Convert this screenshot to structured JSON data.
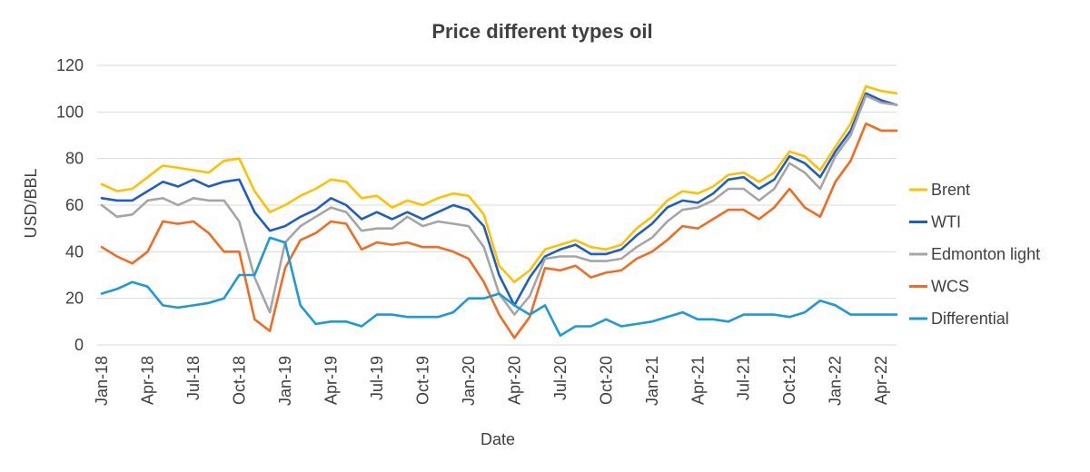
{
  "chart_data": {
    "type": "line",
    "title": "Price different types oil",
    "xlabel": "Date",
    "ylabel": "USD/BBL",
    "ylim": [
      0,
      120
    ],
    "yticks": [
      0,
      20,
      40,
      60,
      80,
      100,
      120
    ],
    "grid": true,
    "legend_position": "right",
    "x": [
      "Jan-18",
      "Feb-18",
      "Mar-18",
      "Apr-18",
      "May-18",
      "Jun-18",
      "Jul-18",
      "Aug-18",
      "Sep-18",
      "Oct-18",
      "Nov-18",
      "Dec-18",
      "Jan-19",
      "Feb-19",
      "Mar-19",
      "Apr-19",
      "May-19",
      "Jun-19",
      "Jul-19",
      "Aug-19",
      "Sep-19",
      "Oct-19",
      "Nov-19",
      "Dec-19",
      "Jan-20",
      "Feb-20",
      "Mar-20",
      "Apr-20",
      "May-20",
      "Jun-20",
      "Jul-20",
      "Aug-20",
      "Sep-20",
      "Oct-20",
      "Nov-20",
      "Dec-20",
      "Jan-21",
      "Feb-21",
      "Mar-21",
      "Apr-21",
      "May-21",
      "Jun-21",
      "Jul-21",
      "Aug-21",
      "Sep-21",
      "Oct-21",
      "Nov-21",
      "Dec-21",
      "Jan-22",
      "Feb-22",
      "Mar-22",
      "Apr-22",
      "May-22"
    ],
    "x_tick_labels": [
      "Jan-18",
      "Apr-18",
      "Jul-18",
      "Oct-18",
      "Jan-19",
      "Apr-19",
      "Jul-19",
      "Oct-19",
      "Jan-20",
      "Apr-20",
      "Jul-20",
      "Oct-20",
      "Jan-21",
      "Apr-21",
      "Jul-21",
      "Oct-21",
      "Jan-22",
      "Apr-22"
    ],
    "series": [
      {
        "name": "Brent",
        "color": "#ffc000",
        "values": [
          69,
          66,
          67,
          72,
          77,
          76,
          75,
          74,
          79,
          80,
          66,
          57,
          60,
          64,
          67,
          71,
          70,
          63,
          64,
          59,
          62,
          60,
          63,
          65,
          64,
          56,
          34,
          27,
          32,
          41,
          43,
          45,
          42,
          41,
          43,
          50,
          55,
          62,
          66,
          65,
          68,
          73,
          74,
          70,
          74,
          83,
          81,
          75,
          85,
          95,
          111,
          109,
          108
        ]
      },
      {
        "name": "WTI",
        "color": "#1f5ebf",
        "values": [
          63,
          62,
          62,
          66,
          70,
          68,
          71,
          68,
          70,
          71,
          57,
          49,
          51,
          55,
          58,
          63,
          60,
          54,
          57,
          54,
          57,
          54,
          57,
          60,
          58,
          51,
          30,
          17,
          29,
          38,
          41,
          43,
          39,
          39,
          41,
          47,
          52,
          59,
          62,
          61,
          65,
          71,
          72,
          67,
          71,
          81,
          78,
          72,
          83,
          92,
          108,
          105,
          103
        ]
      },
      {
        "name": "Edmonton light",
        "color": "#a5a5a5",
        "values": [
          60,
          55,
          56,
          62,
          63,
          60,
          63,
          62,
          62,
          53,
          29,
          14,
          44,
          51,
          55,
          59,
          57,
          49,
          50,
          50,
          55,
          51,
          53,
          52,
          51,
          42,
          22,
          13,
          21,
          37,
          38,
          38,
          36,
          36,
          37,
          42,
          46,
          53,
          58,
          59,
          62,
          67,
          67,
          62,
          67,
          78,
          74,
          67,
          81,
          90,
          107,
          104,
          103
        ]
      },
      {
        "name": "WCS",
        "color": "#f26b21",
        "values": [
          42,
          38,
          35,
          40,
          53,
          52,
          53,
          48,
          40,
          40,
          11,
          6,
          33,
          45,
          48,
          53,
          52,
          41,
          44,
          43,
          44,
          42,
          42,
          40,
          37,
          27,
          13,
          3,
          12,
          33,
          32,
          34,
          29,
          31,
          32,
          37,
          40,
          45,
          51,
          50,
          54,
          58,
          58,
          54,
          59,
          67,
          59,
          55,
          70,
          79,
          95,
          92,
          92
        ]
      },
      {
        "name": "Differential",
        "color": "#1b9ad6",
        "values": [
          22,
          24,
          27,
          25,
          17,
          16,
          17,
          18,
          20,
          30,
          30,
          46,
          44,
          17,
          9,
          10,
          10,
          8,
          13,
          13,
          12,
          12,
          12,
          14,
          20,
          20,
          22,
          17,
          13,
          17,
          4,
          8,
          8,
          11,
          8,
          9,
          10,
          12,
          14,
          11,
          11,
          10,
          13,
          13,
          13,
          12,
          14,
          19,
          17,
          13,
          13,
          13,
          13
        ]
      }
    ]
  }
}
